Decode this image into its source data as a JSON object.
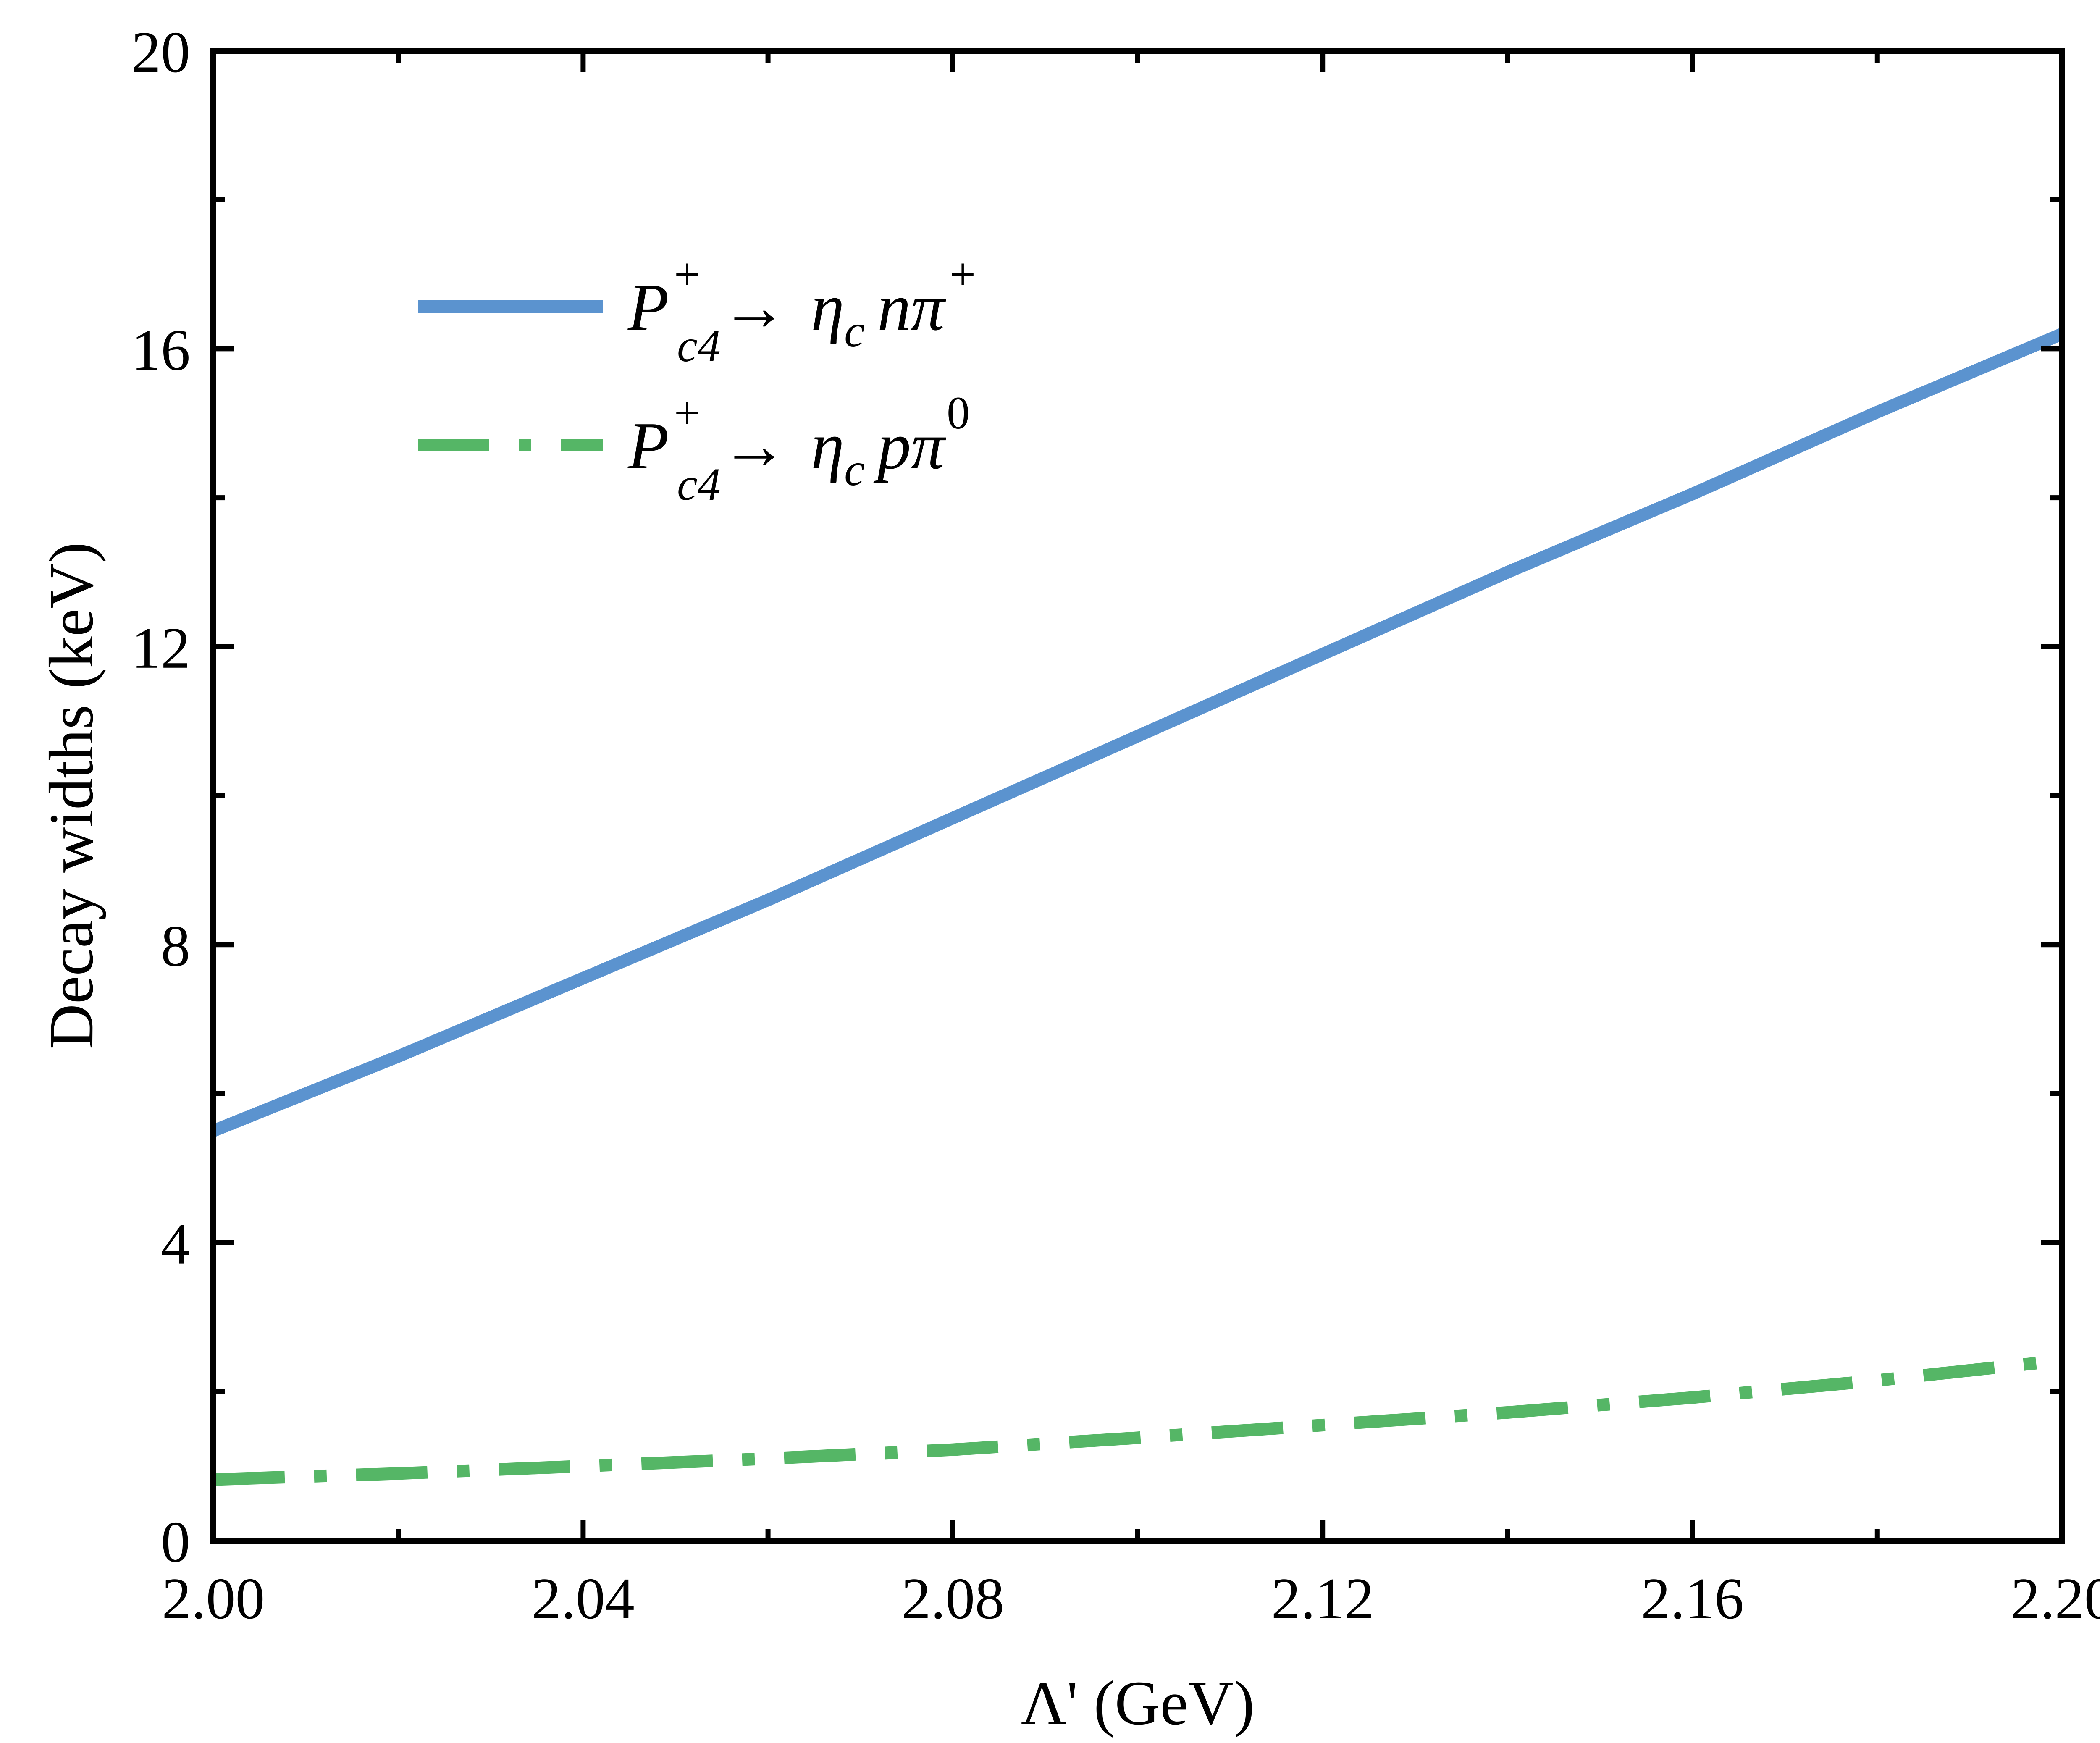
{
  "chart_data": {
    "type": "line",
    "title": "",
    "xlabel": "Λ' (GeV)",
    "ylabel": "Decay widths (keV)",
    "xlim": [
      2.0,
      2.2
    ],
    "ylim": [
      0,
      20
    ],
    "x_major_ticks": [
      2.0,
      2.04,
      2.08,
      2.12,
      2.16,
      2.2
    ],
    "x_tick_labels": [
      "2.00",
      "2.04",
      "2.08",
      "2.12",
      "2.16",
      "2.20"
    ],
    "y_major_ticks": [
      0,
      4,
      8,
      12,
      16,
      20
    ],
    "y_tick_labels": [
      "0",
      "4",
      "8",
      "12",
      "16",
      "20"
    ],
    "x_minor_step": 0.02,
    "y_minor_step": 2,
    "grid": false,
    "legend_position": "upper-left",
    "x": [
      2.0,
      2.02,
      2.04,
      2.06,
      2.08,
      2.1,
      2.12,
      2.14,
      2.16,
      2.18,
      2.2
    ],
    "series": [
      {
        "name": "P_c4^+ → η_c n π^+",
        "legend": {
          "main": "P",
          "sup": "+",
          "sub": "c4",
          "arrow": "→",
          "meson": "η",
          "meson_sub": "c",
          "rest": "nπ",
          "rest_sup": "+"
        },
        "color": "#5b93cf",
        "style": "solid",
        "values": [
          5.5,
          6.5,
          7.55,
          8.6,
          9.7,
          10.8,
          11.9,
          13.0,
          14.05,
          15.15,
          16.2
        ]
      },
      {
        "name": "P_c4^+ → η_c p π^0",
        "legend": {
          "main": "P",
          "sup": "+",
          "sub": "c4",
          "arrow": "→",
          "meson": "η",
          "meson_sub": "c",
          "rest": "pπ",
          "rest_sup": "0"
        },
        "color": "#55b666",
        "style": "dash-dot",
        "values": [
          0.82,
          0.9,
          1.0,
          1.1,
          1.22,
          1.38,
          1.55,
          1.72,
          1.92,
          2.15,
          2.42
        ]
      }
    ]
  }
}
